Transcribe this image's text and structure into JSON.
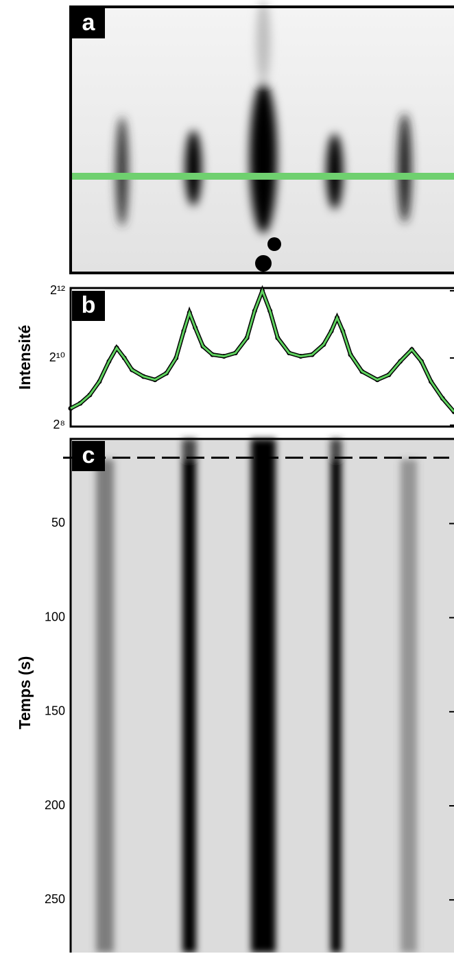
{
  "chart_data": [
    {
      "type": "image",
      "label": "a"
    },
    {
      "type": "line",
      "label": "b",
      "ylabel": "Intensité",
      "yscale": "log2",
      "ylim": [
        256,
        4096
      ],
      "yticks": [
        {
          "value": 256,
          "label": "2⁸"
        },
        {
          "value": 1024,
          "label": "2¹⁰"
        },
        {
          "value": 4096,
          "label": "2¹²"
        }
      ],
      "xlim": [
        0,
        1
      ],
      "x": [
        0,
        0.025,
        0.05,
        0.075,
        0.1,
        0.12,
        0.14,
        0.16,
        0.19,
        0.22,
        0.25,
        0.275,
        0.295,
        0.31,
        0.325,
        0.345,
        0.37,
        0.4,
        0.43,
        0.46,
        0.48,
        0.5,
        0.52,
        0.54,
        0.57,
        0.6,
        0.63,
        0.66,
        0.68,
        0.695,
        0.71,
        0.73,
        0.76,
        0.8,
        0.83,
        0.86,
        0.89,
        0.915,
        0.94,
        0.97,
        1.0
      ],
      "series": [
        {
          "color": "#000000",
          "marker": "dot",
          "values": [
            362,
            402,
            478,
            630,
            955,
            1261,
            1024,
            803,
            699,
            653,
            749,
            1024,
            1783,
            2610,
            1911,
            1305,
            1097,
            1060,
            1136,
            1552,
            2702,
            4096,
            2702,
            1552,
            1136,
            1060,
            1097,
            1351,
            1783,
            2353,
            1783,
            1097,
            776,
            653,
            724,
            955,
            1218,
            955,
            630,
            446,
            338
          ]
        },
        {
          "color": "#5fd35f",
          "marker": "line",
          "values": [
            362,
            402,
            478,
            630,
            955,
            1261,
            1024,
            803,
            699,
            653,
            749,
            1024,
            1783,
            2610,
            1911,
            1305,
            1097,
            1060,
            1136,
            1552,
            2702,
            4096,
            2702,
            1552,
            1136,
            1060,
            1097,
            1351,
            1783,
            2353,
            1783,
            1097,
            776,
            653,
            724,
            955,
            1218,
            955,
            630,
            446,
            338
          ]
        }
      ]
    },
    {
      "type": "image",
      "label": "c",
      "ylabel": "Temps (s)",
      "ylim": [
        5,
        278
      ],
      "yticks": [
        50,
        100,
        150,
        200,
        250
      ],
      "hline": 15
    }
  ]
}
